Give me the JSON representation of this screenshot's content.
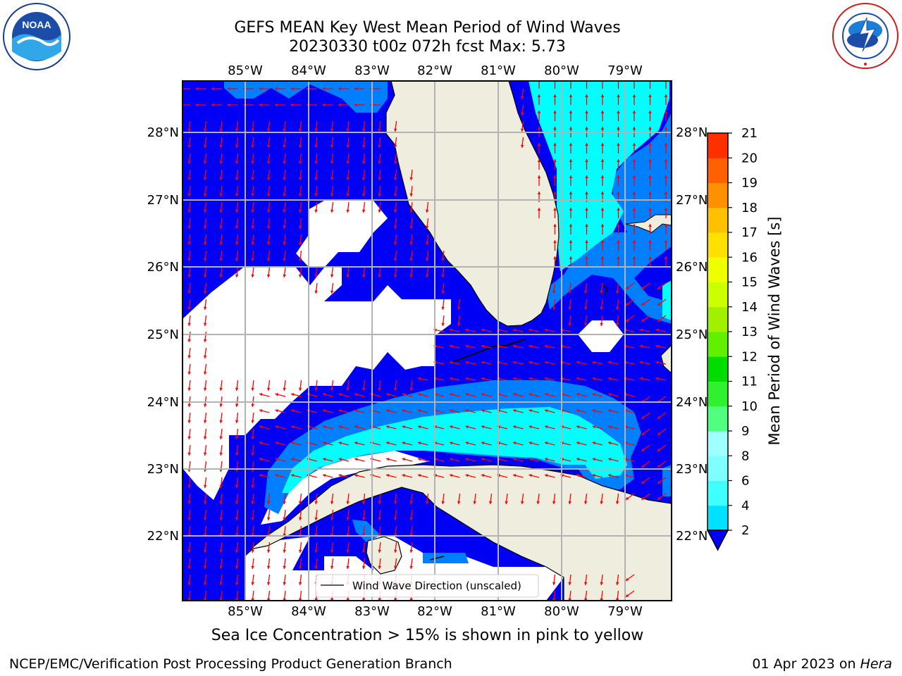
{
  "header": {
    "title_line1": "GEFS MEAN Key West Mean Period of Wind Waves",
    "title_line2": "20230330 t00z 072h fcst   Max: 5.73"
  },
  "logos": {
    "left": {
      "text": "NOAA",
      "ring_text": "NATIONAL OCEANIC AND ATMOSPHERIC ADMINISTRATION · U.S. DEPARTMENT OF COMMERCE"
    },
    "right": {
      "ring_text": "NATIONAL WEATHER SERVICE"
    }
  },
  "map": {
    "lon_labels": [
      "85°W",
      "84°W",
      "83°W",
      "82°W",
      "81°W",
      "80°W",
      "79°W"
    ],
    "lat_labels": [
      "28°N",
      "27°N",
      "26°N",
      "25°N",
      "24°N",
      "23°N",
      "22°N"
    ],
    "legend_label": "Wind Wave Direction (unscaled)",
    "colors": {
      "land": "#EEEDDE",
      "ocean_le2": "#0000F4",
      "band_2_4": "#007FFF",
      "band_4_6": "#00FFFF",
      "vector": "#FF0000",
      "grid": "#B3B3B3"
    }
  },
  "colorbar": {
    "label": "Mean Period of Wind Waves [s]",
    "ticks": [
      "2",
      "4",
      "6",
      "8",
      "9",
      "10",
      "11",
      "12",
      "13",
      "14",
      "15",
      "16",
      "17",
      "18",
      "19",
      "20",
      "21"
    ],
    "colors": [
      "#0070FF",
      "#00E0FF",
      "#40FFFF",
      "#7FFFFF",
      "#A0FFFF",
      "#50FF80",
      "#30F030",
      "#00DD00",
      "#60F000",
      "#A0F000",
      "#CCFF00",
      "#F0FF00",
      "#FFE000",
      "#FFC000",
      "#FF9000",
      "#FF6000",
      "#FF3000",
      "#FF0000"
    ]
  },
  "notes": {
    "sea_ice": "Sea Ice Concentration > 15% is shown in pink to yellow",
    "producer": "NCEP/EMC/Verification Post Processing Product Generation Branch",
    "date_prefix": "01 Apr 2023 on ",
    "machine": "Hera"
  }
}
